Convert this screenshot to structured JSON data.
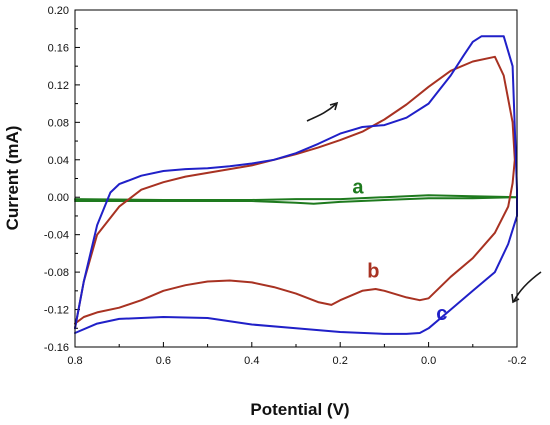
{
  "chart_data": {
    "type": "line",
    "xlabel": "Potential  (V)",
    "ylabel": "Current (mA)",
    "xlim": [
      0.8,
      -0.2
    ],
    "ylim": [
      -0.16,
      0.2
    ],
    "x_reversed": true,
    "grid": false,
    "x_ticks": [
      "0.8",
      "0.6",
      "0.4",
      "0.2",
      "0.0",
      "-0.2"
    ],
    "y_ticks": [
      "-0.16",
      "-0.12",
      "-0.08",
      "-0.04",
      "0.00",
      "0.04",
      "0.08",
      "0.12",
      "0.16",
      "0.20"
    ],
    "x_tick_values": [
      0.8,
      0.6,
      0.4,
      0.2,
      0.0,
      -0.2
    ],
    "y_tick_values": [
      -0.16,
      -0.12,
      -0.08,
      -0.04,
      0.0,
      0.04,
      0.08,
      0.12,
      0.16,
      0.2
    ],
    "series": [
      {
        "name": "a",
        "color": "#1e7a1e",
        "x": [
          0.8,
          0.6,
          0.4,
          0.3,
          0.26,
          0.2,
          0.1,
          0.0,
          -0.1,
          -0.2,
          -0.2,
          -0.1,
          0.0,
          0.1,
          0.2,
          0.3,
          0.4,
          0.6,
          0.8
        ],
        "y": [
          -0.004,
          -0.004,
          -0.004,
          -0.006,
          -0.007,
          -0.005,
          -0.003,
          -0.001,
          -0.001,
          0.0,
          0.0,
          0.001,
          0.002,
          0.0,
          -0.002,
          -0.002,
          -0.003,
          -0.003,
          -0.002
        ]
      },
      {
        "name": "b",
        "color": "#a83222",
        "x": [
          0.8,
          0.78,
          0.75,
          0.7,
          0.65,
          0.6,
          0.55,
          0.5,
          0.45,
          0.4,
          0.35,
          0.3,
          0.25,
          0.22,
          0.2,
          0.15,
          0.12,
          0.1,
          0.05,
          0.02,
          0.0,
          -0.05,
          -0.1,
          -0.15,
          -0.18,
          -0.19,
          -0.195,
          -0.195,
          -0.19,
          -0.17,
          -0.15,
          -0.1,
          -0.05,
          0.0,
          0.05,
          0.1,
          0.15,
          0.2,
          0.25,
          0.3,
          0.35,
          0.4,
          0.45,
          0.5,
          0.55,
          0.6,
          0.65,
          0.7,
          0.75,
          0.78,
          0.8
        ],
        "y": [
          -0.135,
          -0.128,
          -0.123,
          -0.118,
          -0.11,
          -0.1,
          -0.094,
          -0.09,
          -0.089,
          -0.091,
          -0.096,
          -0.103,
          -0.112,
          -0.115,
          -0.11,
          -0.1,
          -0.098,
          -0.1,
          -0.107,
          -0.11,
          -0.108,
          -0.085,
          -0.065,
          -0.038,
          -0.01,
          0.015,
          0.04,
          0.04,
          0.08,
          0.13,
          0.15,
          0.145,
          0.135,
          0.118,
          0.099,
          0.083,
          0.07,
          0.061,
          0.053,
          0.046,
          0.04,
          0.034,
          0.03,
          0.026,
          0.022,
          0.016,
          0.008,
          -0.01,
          -0.04,
          -0.09,
          -0.14
        ]
      },
      {
        "name": "c",
        "color": "#2020c8",
        "x": [
          0.8,
          0.75,
          0.7,
          0.6,
          0.5,
          0.4,
          0.3,
          0.2,
          0.1,
          0.05,
          0.02,
          0.0,
          -0.05,
          -0.1,
          -0.15,
          -0.18,
          -0.2,
          -0.2,
          -0.19,
          -0.17,
          -0.15,
          -0.12,
          -0.1,
          -0.08,
          -0.05,
          -0.02,
          0.0,
          0.05,
          0.1,
          0.15,
          0.2,
          0.25,
          0.3,
          0.35,
          0.4,
          0.45,
          0.5,
          0.55,
          0.6,
          0.65,
          0.7,
          0.72,
          0.75,
          0.78,
          0.8
        ],
        "y": [
          -0.145,
          -0.135,
          -0.13,
          -0.128,
          -0.129,
          -0.136,
          -0.14,
          -0.144,
          -0.146,
          -0.146,
          -0.145,
          -0.14,
          -0.12,
          -0.1,
          -0.08,
          -0.05,
          -0.02,
          0.008,
          0.14,
          0.172,
          0.172,
          0.172,
          0.166,
          0.152,
          0.13,
          0.112,
          0.1,
          0.085,
          0.077,
          0.075,
          0.068,
          0.057,
          0.047,
          0.04,
          0.036,
          0.033,
          0.031,
          0.03,
          0.028,
          0.023,
          0.014,
          0.005,
          -0.03,
          -0.09,
          -0.14
        ]
      }
    ],
    "annotations": [
      {
        "text": "a",
        "color": "#1e7a1e",
        "x": 0.16,
        "y": 0.004
      },
      {
        "text": "b",
        "color": "#a83222",
        "x": 0.125,
        "y": -0.086
      },
      {
        "text": "c",
        "color": "#2020c8",
        "x": -0.03,
        "y": -0.131
      }
    ]
  }
}
